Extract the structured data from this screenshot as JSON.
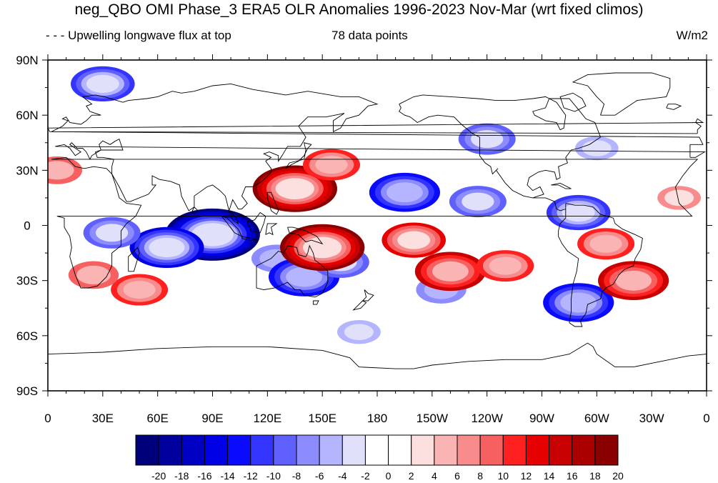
{
  "title": "neg_QBO OMI Phase_3 ERA5 OLR Anomalies 1996-2023 Nov-Mar (wrt fixed climos)",
  "subtitle_left": "- - - Upwelling longwave flux at top",
  "subtitle_center": "78 data points",
  "units": "W/m2",
  "chart_data": {
    "type": "heatmap",
    "projection": "cylindrical-equidistant",
    "center_longitude": 180,
    "xlim": [
      0,
      360
    ],
    "ylim": [
      -90,
      90
    ],
    "x_tick_labels": [
      "0",
      "30E",
      "60E",
      "90E",
      "120E",
      "150E",
      "180",
      "150W",
      "120W",
      "90W",
      "60W",
      "30W",
      "0"
    ],
    "y_tick_labels": [
      "90N",
      "60N",
      "30N",
      "0",
      "30S",
      "60S",
      "90S"
    ],
    "levels": [
      -20,
      -18,
      -16,
      -14,
      -12,
      -10,
      -8,
      -6,
      -4,
      -2,
      0,
      2,
      4,
      6,
      8,
      10,
      12,
      14,
      16,
      18,
      20
    ],
    "level_colors": [
      "#00007a",
      "#00009e",
      "#0000c4",
      "#0000e6",
      "#0a0aff",
      "#3434ff",
      "#6060ff",
      "#8c8cff",
      "#b4b4ff",
      "#e0e0fa",
      "#ffffff",
      "#ffffff",
      "#fce0e0",
      "#fab4b4",
      "#f88c8c",
      "#f66060",
      "#ff2020",
      "#e60000",
      "#c80000",
      "#aa0000",
      "#8a0000"
    ],
    "anomaly_features": [
      {
        "lon": 90,
        "lat": -5,
        "value": -21
      },
      {
        "lon": 65,
        "lat": -12,
        "value": -15
      },
      {
        "lon": 125,
        "lat": -18,
        "value": -8
      },
      {
        "lon": 140,
        "lat": -28,
        "value": -14
      },
      {
        "lon": 160,
        "lat": -20,
        "value": -10
      },
      {
        "lon": 35,
        "lat": -4,
        "value": -10
      },
      {
        "lon": 30,
        "lat": 77,
        "value": -12
      },
      {
        "lon": 195,
        "lat": 18,
        "value": -14
      },
      {
        "lon": 235,
        "lat": 13,
        "value": -10
      },
      {
        "lon": 290,
        "lat": 7,
        "value": -12
      },
      {
        "lon": 240,
        "lat": 47,
        "value": -10
      },
      {
        "lon": 300,
        "lat": 42,
        "value": -6
      },
      {
        "lon": 290,
        "lat": -42,
        "value": -14
      },
      {
        "lon": 215,
        "lat": -35,
        "value": -8
      },
      {
        "lon": 170,
        "lat": -58,
        "value": -6
      },
      {
        "lon": 135,
        "lat": 20,
        "value": 18
      },
      {
        "lon": 155,
        "lat": 33,
        "value": 10
      },
      {
        "lon": 150,
        "lat": -12,
        "value": 18
      },
      {
        "lon": 200,
        "lat": -8,
        "value": 12
      },
      {
        "lon": 220,
        "lat": -25,
        "value": 14
      },
      {
        "lon": 250,
        "lat": -22,
        "value": 10
      },
      {
        "lon": 320,
        "lat": -30,
        "value": 14
      },
      {
        "lon": 305,
        "lat": -10,
        "value": 10
      },
      {
        "lon": 50,
        "lat": -35,
        "value": 10
      },
      {
        "lon": 25,
        "lat": -27,
        "value": 8
      },
      {
        "lon": 5,
        "lat": 30,
        "value": 8
      },
      {
        "lon": 345,
        "lat": 15,
        "value": 6
      }
    ]
  }
}
